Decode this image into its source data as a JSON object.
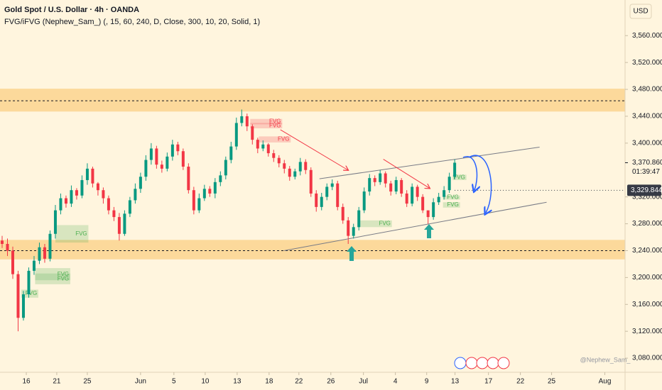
{
  "chart_data": {
    "type": "candlestick",
    "title": "Gold Spot / U.S. Dollar · 4h · OANDA",
    "indicator": "FVG/iFVG (Nephew_Sam_) (, 15, 60, 240, D, Close, 300, 10, 20, Solid, 1)",
    "currency": "USD",
    "watermark": "@Nephew_Sam_",
    "up_color": "#089981",
    "down_color": "#f23645",
    "xlim": [
      0,
      58.7
    ],
    "ylim": [
      3059,
      3613
    ],
    "grid": false,
    "xticks": [
      {
        "value": 2.47,
        "label": "16"
      },
      {
        "value": 5.33,
        "label": "21"
      },
      {
        "value": 8.2,
        "label": "25"
      },
      {
        "value": 13.2,
        "label": "Jun"
      },
      {
        "value": 16.33,
        "label": "5"
      },
      {
        "value": 19.27,
        "label": "10"
      },
      {
        "value": 22.27,
        "label": "13"
      },
      {
        "value": 25.27,
        "label": "18"
      },
      {
        "value": 28.07,
        "label": "22"
      },
      {
        "value": 31.07,
        "label": "26"
      },
      {
        "value": 34.13,
        "label": "Jul"
      },
      {
        "value": 37.13,
        "label": "4"
      },
      {
        "value": 40.07,
        "label": "9"
      },
      {
        "value": 42.73,
        "label": "13"
      },
      {
        "value": 45.87,
        "label": "17"
      },
      {
        "value": 48.87,
        "label": "22"
      },
      {
        "value": 51.8,
        "label": "25"
      },
      {
        "value": 56.8,
        "label": "Aug"
      }
    ],
    "yticks": [
      {
        "value": 3080,
        "label": "3,080.000"
      },
      {
        "value": 3120,
        "label": "3,120.000"
      },
      {
        "value": 3160,
        "label": "3,160.000"
      },
      {
        "value": 3200,
        "label": "3,200.000"
      },
      {
        "value": 3240,
        "label": "3,240.000"
      },
      {
        "value": 3280,
        "label": "3,280.000"
      },
      {
        "value": 3320,
        "label": "3,320.000"
      },
      {
        "value": 3400,
        "label": "3,400.000"
      },
      {
        "value": 3440,
        "label": "3,440.000"
      },
      {
        "value": 3480,
        "label": "3,480.000"
      },
      {
        "value": 3520,
        "label": "3,520.000"
      },
      {
        "value": 3560,
        "label": "3,560.000"
      }
    ],
    "x": [
      0.2,
      0.7,
      1.2,
      1.7,
      2.2,
      2.7,
      3.2,
      3.7,
      4.2,
      4.7,
      5.2,
      5.7,
      6.2,
      6.7,
      7.2,
      7.7,
      8.2,
      8.7,
      9.2,
      9.7,
      10.2,
      10.7,
      11.2,
      11.7,
      12.2,
      12.7,
      13.2,
      13.7,
      14.2,
      14.7,
      15.2,
      15.7,
      16.2,
      16.7,
      17.2,
      17.7,
      18.2,
      18.7,
      19.2,
      19.7,
      20.2,
      20.7,
      21.2,
      21.7,
      22.2,
      22.7,
      23.2,
      23.7,
      24.2,
      24.7,
      25.2,
      25.7,
      26.2,
      26.7,
      27.2,
      27.7,
      28.2,
      28.7,
      29.2,
      29.7,
      30.2,
      30.7,
      31.2,
      31.7,
      32.2,
      32.7,
      33.2,
      33.7,
      34.2,
      34.7,
      35.2,
      35.7,
      36.2,
      36.7,
      37.2,
      37.7,
      38.2,
      38.7,
      39.2,
      39.7,
      40.2,
      40.7,
      41.2,
      41.7,
      42.2,
      42.7
    ],
    "open": [
      3255,
      3250,
      3240,
      3205,
      3140,
      3175,
      3210,
      3225,
      3245,
      3228,
      3265,
      3300,
      3318,
      3310,
      3330,
      3322,
      3345,
      3362,
      3340,
      3330,
      3318,
      3300,
      3290,
      3265,
      3295,
      3315,
      3332,
      3350,
      3375,
      3392,
      3368,
      3362,
      3380,
      3398,
      3388,
      3365,
      3330,
      3300,
      3318,
      3332,
      3325,
      3342,
      3352,
      3375,
      3395,
      3430,
      3440,
      3425,
      3405,
      3392,
      3398,
      3385,
      3378,
      3370,
      3362,
      3350,
      3358,
      3372,
      3360,
      3325,
      3305,
      3320,
      3335,
      3340,
      3305,
      3285,
      3262,
      3275,
      3300,
      3328,
      3348,
      3342,
      3355,
      3340,
      3328,
      3345,
      3325,
      3310,
      3335,
      3320,
      3300,
      3290,
      3312,
      3320,
      3330,
      3350
    ],
    "high": [
      3262,
      3258,
      3246,
      3210,
      3180,
      3215,
      3232,
      3252,
      3250,
      3270,
      3308,
      3325,
      3322,
      3337,
      3333,
      3352,
      3370,
      3365,
      3342,
      3334,
      3322,
      3305,
      3296,
      3300,
      3320,
      3340,
      3356,
      3382,
      3400,
      3396,
      3374,
      3386,
      3405,
      3402,
      3392,
      3370,
      3335,
      3325,
      3338,
      3336,
      3348,
      3358,
      3380,
      3402,
      3438,
      3450,
      3444,
      3428,
      3408,
      3404,
      3400,
      3390,
      3382,
      3375,
      3366,
      3362,
      3378,
      3376,
      3364,
      3330,
      3326,
      3340,
      3346,
      3344,
      3310,
      3290,
      3280,
      3305,
      3334,
      3354,
      3352,
      3360,
      3358,
      3344,
      3350,
      3348,
      3330,
      3340,
      3338,
      3324,
      3298,
      3318,
      3326,
      3336,
      3356,
      3376
    ],
    "low": [
      3244,
      3232,
      3198,
      3120,
      3136,
      3170,
      3204,
      3220,
      3222,
      3224,
      3258,
      3294,
      3304,
      3305,
      3316,
      3318,
      3338,
      3334,
      3322,
      3310,
      3294,
      3284,
      3255,
      3262,
      3290,
      3310,
      3326,
      3344,
      3368,
      3362,
      3356,
      3358,
      3374,
      3382,
      3360,
      3325,
      3294,
      3296,
      3314,
      3320,
      3318,
      3336,
      3346,
      3370,
      3390,
      3425,
      3418,
      3398,
      3385,
      3388,
      3380,
      3372,
      3364,
      3355,
      3344,
      3346,
      3352,
      3354,
      3320,
      3298,
      3300,
      3315,
      3330,
      3300,
      3280,
      3250,
      3258,
      3270,
      3296,
      3322,
      3336,
      3338,
      3334,
      3322,
      3324,
      3320,
      3305,
      3306,
      3314,
      3296,
      3280,
      3286,
      3308,
      3316,
      3326,
      3346
    ],
    "close": [
      3250,
      3240,
      3205,
      3140,
      3175,
      3210,
      3225,
      3245,
      3228,
      3265,
      3300,
      3318,
      3310,
      3330,
      3322,
      3345,
      3362,
      3340,
      3330,
      3318,
      3300,
      3290,
      3265,
      3295,
      3315,
      3332,
      3350,
      3375,
      3392,
      3368,
      3362,
      3380,
      3398,
      3388,
      3365,
      3330,
      3300,
      3318,
      3332,
      3325,
      3342,
      3352,
      3375,
      3395,
      3430,
      3440,
      3425,
      3405,
      3392,
      3398,
      3385,
      3378,
      3370,
      3362,
      3350,
      3358,
      3372,
      3360,
      3325,
      3305,
      3320,
      3335,
      3340,
      3305,
      3285,
      3262,
      3275,
      3300,
      3328,
      3348,
      3342,
      3355,
      3340,
      3328,
      3345,
      3325,
      3310,
      3335,
      3320,
      3300,
      3290,
      3312,
      3320,
      3330,
      3350,
      3370.86
    ],
    "zones": [
      {
        "from": 3447,
        "to": 3481,
        "color": "#fcd38f"
      },
      {
        "from": 3227,
        "to": 3256,
        "color": "#fcd38f"
      }
    ],
    "levels": [
      3463,
      3240
    ],
    "price_labels": [
      {
        "value": 3370.86,
        "label": "3,370.860",
        "countdown": "01:39:47"
      },
      {
        "value": 3329.844,
        "label": "3,329.844",
        "color": "#363a45"
      }
    ],
    "trend_lines": [
      {
        "x": [
          30,
          50.67
        ],
        "y": [
          3347,
          3394
        ],
        "color": "#787b86",
        "arrow": false
      },
      {
        "x": [
          26.67,
          51.33
        ],
        "y": [
          3240,
          3312
        ],
        "color": "#787b86",
        "arrow": false
      },
      {
        "x": [
          26.33,
          32.67
        ],
        "y": [
          3420,
          3360
        ],
        "color": "#f23645",
        "arrow": true
      },
      {
        "x": [
          36,
          40.33
        ],
        "y": [
          3376,
          3333
        ],
        "color": "#f23645",
        "arrow": true
      }
    ],
    "fvg": [
      {
        "x": [
          23.5,
          26.5
        ],
        "y": [
          3436,
          3428
        ],
        "label": "FVG",
        "color": "#f23645"
      },
      {
        "x": [
          23.5,
          26.5
        ],
        "y": [
          3430,
          3422
        ],
        "label": "FVG",
        "color": "#f23645"
      },
      {
        "x": [
          24.3,
          27.3
        ],
        "y": [
          3410,
          3401
        ],
        "label": "FVG",
        "color": "#f23645"
      },
      {
        "x": [
          5.2,
          8.3
        ],
        "y": [
          3278,
          3252
        ],
        "label": "FVG",
        "color": "#4caf50"
      },
      {
        "x": [
          3.3,
          6.6
        ],
        "y": [
          3214,
          3196
        ],
        "label": "FVG",
        "color": "#4caf50"
      },
      {
        "x": [
          3.3,
          6.6
        ],
        "y": [
          3206,
          3190
        ],
        "label": "FVG",
        "color": "#4caf50"
      },
      {
        "x": [
          2,
          3.6
        ],
        "y": [
          3182,
          3170
        ],
        "label": "FVG",
        "color": "#4caf50"
      },
      {
        "x": [
          33.6,
          36.8
        ],
        "y": [
          3285,
          3275
        ],
        "label": "FVG",
        "color": "#4caf50"
      },
      {
        "x": [
          41.6,
          43.2
        ],
        "y": [
          3322,
          3316
        ],
        "label": "FVG",
        "color": "#4caf50"
      },
      {
        "x": [
          41.6,
          43.2
        ],
        "y": [
          3312,
          3304
        ],
        "label": "FVG",
        "color": "#4caf50"
      },
      {
        "x": [
          42.5,
          43.8
        ],
        "y": [
          3353,
          3345
        ],
        "label": "FVG",
        "color": "#4caf50"
      }
    ]
  }
}
